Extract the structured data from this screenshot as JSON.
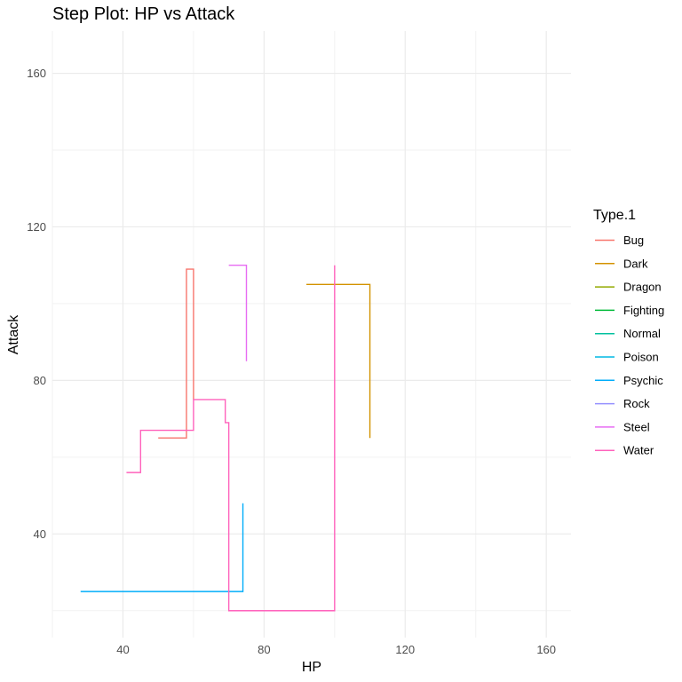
{
  "chart_data": {
    "type": "line",
    "step": true,
    "title": "Step Plot: HP vs Attack",
    "xlabel": "HP",
    "ylabel": "Attack",
    "xlim": [
      20,
      167
    ],
    "ylim": [
      13,
      171
    ],
    "xticks": [
      40,
      80,
      120,
      160
    ],
    "yticks": [
      40,
      80,
      120,
      160
    ],
    "grid": true,
    "legend": {
      "title": "Type.1",
      "placement": "right"
    },
    "series": [
      {
        "name": "Bug",
        "color": "#F8766D",
        "points": [
          [
            50,
            65
          ],
          [
            58,
            109
          ],
          [
            60,
            75
          ]
        ]
      },
      {
        "name": "Dark",
        "color": "#D39200",
        "points": [
          [
            92,
            105
          ],
          [
            110,
            65
          ]
        ]
      },
      {
        "name": "Dragon",
        "color": "#93AA00",
        "points": []
      },
      {
        "name": "Fighting",
        "color": "#00BA38",
        "points": []
      },
      {
        "name": "Normal",
        "color": "#00C19F",
        "points": []
      },
      {
        "name": "Poison",
        "color": "#00B9E3",
        "points": []
      },
      {
        "name": "Psychic",
        "color": "#00ADFA",
        "points": [
          [
            28,
            25
          ],
          [
            74,
            48
          ]
        ]
      },
      {
        "name": "Rock",
        "color": "#9590FF",
        "points": []
      },
      {
        "name": "Steel",
        "color": "#E76BF3",
        "points": [
          [
            70,
            110
          ],
          [
            75,
            85
          ]
        ]
      },
      {
        "name": "Water",
        "color": "#FF62BC",
        "points": [
          [
            41,
            56
          ],
          [
            45,
            67
          ],
          [
            60,
            75
          ],
          [
            69,
            69
          ],
          [
            70,
            20
          ],
          [
            100,
            110
          ]
        ]
      }
    ]
  }
}
